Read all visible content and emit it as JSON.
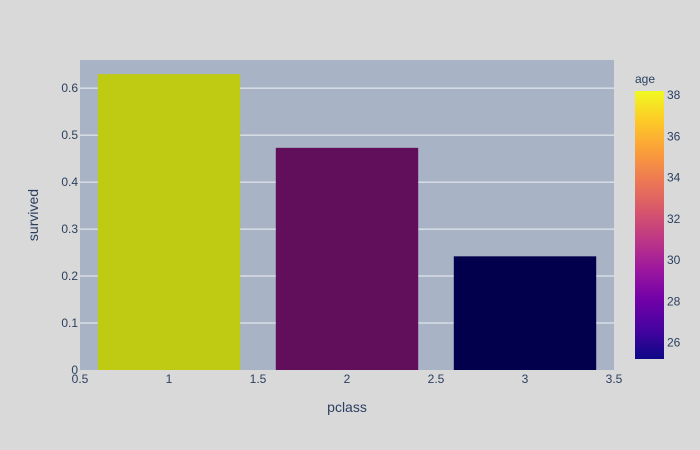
{
  "chart_data": {
    "type": "bar",
    "x": [
      1,
      2,
      3
    ],
    "values": [
      0.63,
      0.473,
      0.242
    ],
    "color_values": [
      38.1,
      29.9,
      25.1
    ],
    "xlabel": "pclass",
    "ylabel": "survived",
    "xlim": [
      0.5,
      3.5
    ],
    "ylim": [
      0,
      0.66
    ],
    "x_ticks": [
      "0.5",
      "1",
      "1.5",
      "2",
      "2.5",
      "3",
      "3.5"
    ],
    "x_tick_values": [
      0.5,
      1,
      1.5,
      2,
      2.5,
      3,
      3.5
    ],
    "y_ticks": [
      "0",
      "0.1",
      "0.2",
      "0.3",
      "0.4",
      "0.5",
      "0.6"
    ],
    "y_tick_values": [
      0,
      0.1,
      0.2,
      0.3,
      0.4,
      0.5,
      0.6
    ],
    "grid": true,
    "colorbar": {
      "title": "age",
      "range": [
        25.2,
        38.2
      ],
      "ticks": [
        "26",
        "28",
        "30",
        "32",
        "34",
        "36",
        "38"
      ],
      "tick_values": [
        26,
        28,
        30,
        32,
        34,
        36,
        38
      ],
      "colorscale": [
        "#0d0887",
        "#46039f",
        "#7201a8",
        "#9c179e",
        "#bd3786",
        "#d8576b",
        "#ed7953",
        "#fb9f3a",
        "#fdca26",
        "#f0f921"
      ]
    },
    "colors": {
      "paper": "#d9d9d9",
      "plot_bg": "#a8b4c6",
      "grid": "#eef2f7",
      "bar_colors": [
        "#bfcb12",
        "#610f5b",
        "#02004d"
      ]
    }
  }
}
